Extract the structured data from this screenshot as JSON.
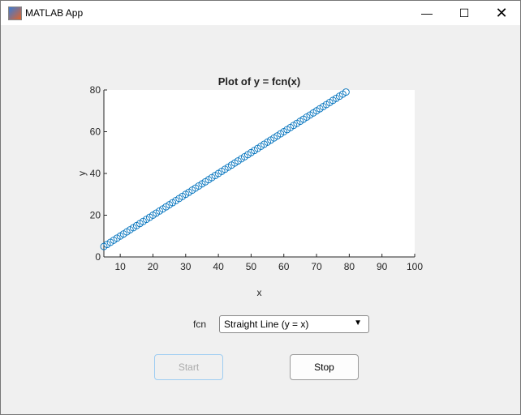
{
  "window": {
    "title": "MATLAB App",
    "minimize_icon": "minimize-icon",
    "maximize_icon": "maximize-icon",
    "close_icon": "close-icon"
  },
  "chart_data": {
    "type": "scatter",
    "title": "Plot of y = fcn(x)",
    "xlabel": "x",
    "ylabel": "y",
    "xlim": [
      5,
      100
    ],
    "ylim": [
      0,
      80
    ],
    "xticks": [
      10,
      20,
      30,
      40,
      50,
      60,
      70,
      80,
      90,
      100
    ],
    "yticks": [
      0,
      20,
      40,
      60,
      80
    ],
    "marker": "circle-open",
    "color": "#0072BD",
    "x_range": {
      "start": 5,
      "end": 79,
      "step": 1
    },
    "function": "y = x"
  },
  "controls": {
    "fcn_label": "fcn",
    "fcn_value": "Straight Line (y = x)",
    "start_label": "Start",
    "stop_label": "Stop"
  }
}
